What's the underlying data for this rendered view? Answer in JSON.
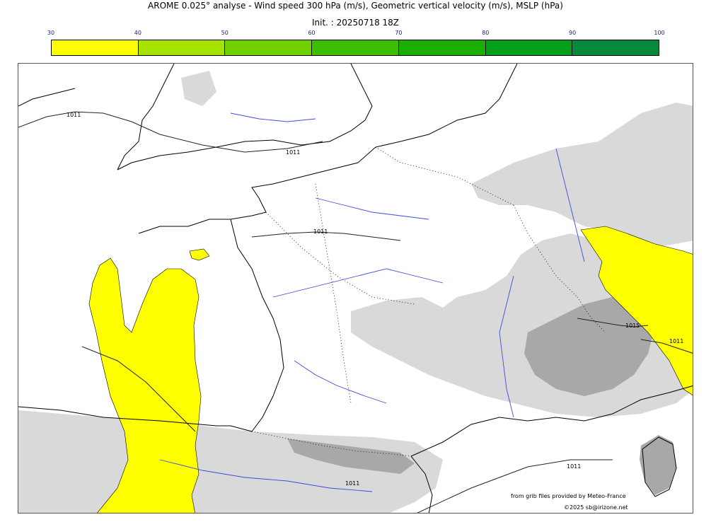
{
  "title": "AROME 0.025° analyse - Wind speed 300 hPa (m/s), Geometric vertical velocity (m/s), MSLP (hPa)",
  "subtitle": "Init. : 20250718 18Z",
  "colorbar": {
    "ticks": [
      "30",
      "40",
      "50",
      "60",
      "70",
      "80",
      "90",
      "100"
    ],
    "colors": [
      "#ffff00",
      "#a6e300",
      "#6fd200",
      "#3cbf00",
      "#1aaf00",
      "#05a01a",
      "#058a3c",
      "#047a4c"
    ]
  },
  "map": {
    "isobar_labels": [
      "1011",
      "1011",
      "1011",
      "1015",
      "1011",
      "1011",
      "1011"
    ],
    "colors": {
      "land_line": "#000000",
      "river": "#3b4cdf",
      "gray_shade": "#d9d9d9",
      "dark_shade": "#a8a8a8",
      "wind_fill": "#ffff00"
    }
  },
  "credits": {
    "source": "from grib files provided by Meteo-France",
    "copyright": "©2025 sb@irizone.net"
  }
}
